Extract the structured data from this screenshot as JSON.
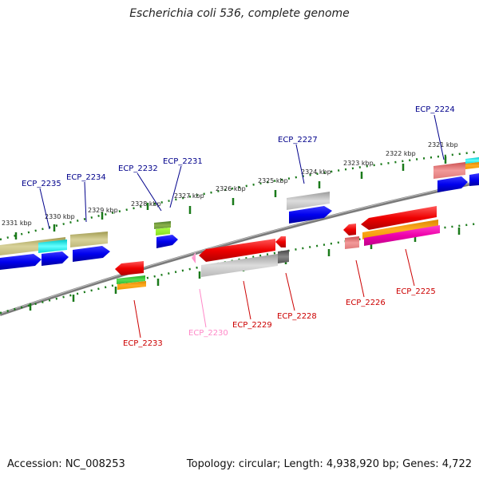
{
  "title": "Escherichia coli 536, complete genome",
  "footer": {
    "accession": "Accession: NC_008253",
    "summary": "Topology: circular; Length: 4,938,920 bp; Genes: 4,722"
  },
  "colors": {
    "top_gene_label": "#00008b",
    "bottom_gene_label": "#cc0000",
    "pseudo_gene_label": "#ff88c8",
    "ruler_tick": "#1a7a1a",
    "backbone": "#7a7a7a"
  },
  "ruler_labels": [
    "2321 kbp",
    "2322 kbp",
    "2323 kbp",
    "2324 kbp",
    "2325 kbp",
    "2326 kbp",
    "2327 kbp",
    "2328 kbp",
    "2329 kbp",
    "2330 kbp",
    "2331 kbp"
  ],
  "genes_top": [
    "ECP_2224",
    "ECP_2227",
    "ECP_2231",
    "ECP_2232",
    "ECP_2234",
    "ECP_2235"
  ],
  "genes_bottom": [
    "ECP_2225",
    "ECP_2226",
    "ECP_2228",
    "ECP_2229",
    "ECP_2230",
    "ECP_2233"
  ]
}
